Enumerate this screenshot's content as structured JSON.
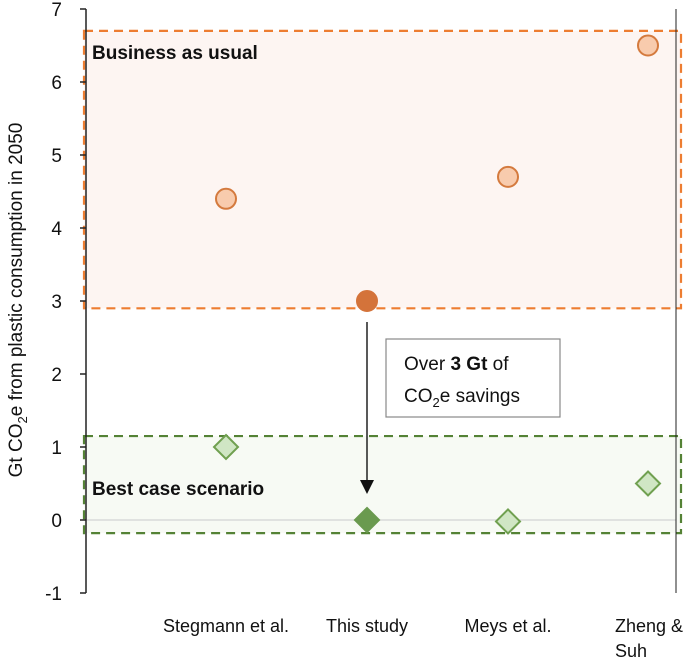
{
  "chart_data": {
    "type": "scatter",
    "ylabel": "Gt CO2e from plastic consumption in 2050",
    "ylabel_parts": {
      "pre": "Gt CO",
      "sub": "2",
      "post": "e from plastic consumption in 2050"
    },
    "ylim": [
      -1,
      7
    ],
    "yticks": [
      -1,
      0,
      1,
      2,
      3,
      4,
      5,
      6,
      7
    ],
    "categories": [
      "Stegmann et al.",
      "This study",
      "Meys et al.",
      "Zheng & Suh"
    ],
    "category_lines": [
      [
        "Stegmann et al."
      ],
      [
        "This study"
      ],
      [
        "Meys et al."
      ],
      [
        "Zheng &",
        "Suh"
      ]
    ],
    "series": [
      {
        "marker": "circle",
        "values": [
          4.4,
          3.0,
          4.7,
          6.5
        ],
        "highlight_index": 1,
        "color": "#f8cbad",
        "stroke": "#d47a3e",
        "highlight_color": "#d4733a"
      },
      {
        "marker": "diamond",
        "values": [
          1.0,
          0.0,
          -0.02,
          0.5
        ],
        "highlight_index": 1,
        "color": "#d0e6c4",
        "stroke": "#70a050",
        "highlight_color": "#6a9a4f"
      }
    ],
    "regions": [
      {
        "label": "Business as usual",
        "range": [
          2.9,
          6.7
        ],
        "color": "#ed7d31",
        "fill": "#fdf5f2"
      },
      {
        "label": "Best case scenario",
        "range": [
          -0.18,
          1.15
        ],
        "color": "#548235",
        "fill": "#f7faf4"
      }
    ],
    "annotation": {
      "pre": "Over ",
      "bold": "3 Gt",
      "post": " of",
      "line2_pre": "CO",
      "line2_sub": "2",
      "line2_post": "e savings"
    },
    "grid": false
  }
}
